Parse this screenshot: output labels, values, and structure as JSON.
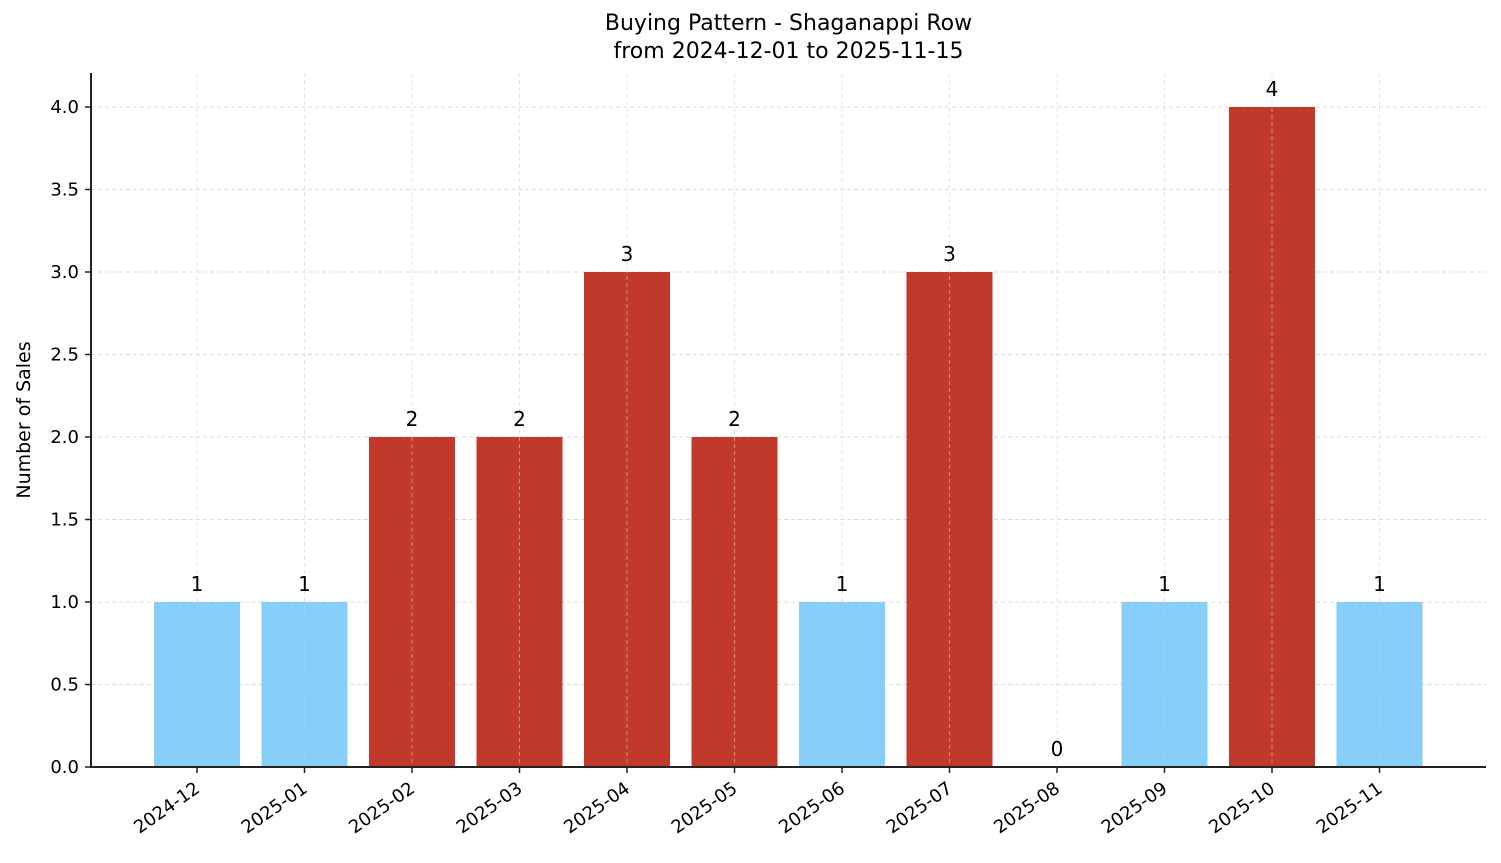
{
  "chart_data": {
    "type": "bar",
    "title": "Buying Pattern - Shaganappi Row",
    "subtitle": "from 2024-12-01 to 2025-11-15",
    "xlabel": "",
    "ylabel": "Number of Sales",
    "categories": [
      "2024-12",
      "2025-01",
      "2025-02",
      "2025-03",
      "2025-04",
      "2025-05",
      "2025-06",
      "2025-07",
      "2025-08",
      "2025-09",
      "2025-10",
      "2025-11"
    ],
    "values": [
      1,
      1,
      2,
      2,
      3,
      2,
      1,
      3,
      0,
      1,
      4,
      1
    ],
    "bar_labels": [
      "1",
      "1",
      "2",
      "2",
      "3",
      "2",
      "1",
      "3",
      "0",
      "1",
      "4",
      "1"
    ],
    "bar_colors": [
      "#87CEFA",
      "#87CEFA",
      "#C0392B",
      "#C0392B",
      "#C0392B",
      "#C0392B",
      "#87CEFA",
      "#C0392B",
      "#87CEFA",
      "#87CEFA",
      "#C0392B",
      "#87CEFA"
    ],
    "ylim": [
      0,
      4.2
    ],
    "yticks": [
      "0.0",
      "0.5",
      "1.0",
      "1.5",
      "2.0",
      "2.5",
      "3.0",
      "3.5",
      "4.0"
    ],
    "grid": true,
    "legend": null,
    "colors": {
      "low": "#87CEFA",
      "high": "#C0392B"
    }
  }
}
